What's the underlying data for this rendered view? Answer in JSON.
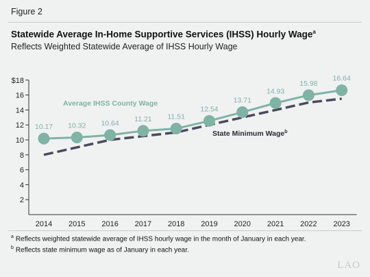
{
  "figure_label": "Figure 2",
  "title": "Statewide Average In-Home Supportive Services (IHSS) Hourly Wage",
  "title_note": "a",
  "subtitle": "Reflects Weighted Statewide Average of IHSS Hourly Wage",
  "chart_data": {
    "type": "line",
    "x": [
      "2014",
      "2015",
      "2016",
      "2017",
      "2018",
      "2019",
      "2020",
      "2021",
      "2022",
      "2023"
    ],
    "ylim": [
      0,
      18
    ],
    "yticks": [
      2,
      4,
      6,
      8,
      10,
      12,
      14,
      16,
      18
    ],
    "ytick_labels": [
      "2",
      "4",
      "6",
      "8",
      "10",
      "12",
      "14",
      "16",
      "$18"
    ],
    "grid": false,
    "series": [
      {
        "name": "Average IHSS County Wage",
        "style": "solid-with-markers",
        "color": "#7fb3a4",
        "values": [
          10.17,
          10.32,
          10.64,
          11.21,
          11.51,
          12.54,
          13.71,
          14.93,
          15.98,
          16.64
        ],
        "data_labels": [
          "10.17",
          "10.32",
          "10.64",
          "11.21",
          "11.51",
          "12.54",
          "13.71",
          "14.93",
          "15.98",
          "16.64"
        ]
      },
      {
        "name": "State Minimum Wage",
        "style": "dashed",
        "color": "#4a4a5e",
        "values": [
          8,
          9,
          10,
          10.5,
          11,
          12,
          13,
          14,
          15,
          15.5
        ]
      }
    ]
  },
  "footnotes": [
    {
      "mark": "a",
      "text": "Reflects weighted statewide average of IHSS hourly wage in the month of January in each year."
    },
    {
      "mark": "b",
      "text": "Reflects state minimum wage as of January in each year."
    }
  ],
  "logo": "LAO"
}
